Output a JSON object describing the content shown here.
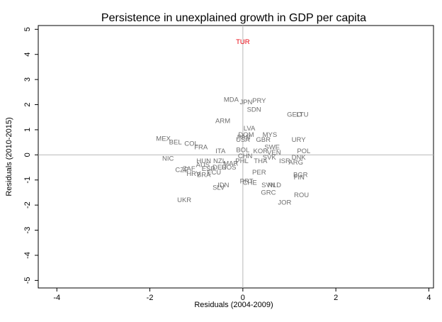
{
  "chart_data": {
    "type": "scatter",
    "title": "Persistence in unexplained growth in GDP per capita",
    "xlabel": "Residuals (2004-2009)",
    "ylabel": "Residuals (2010-2015)",
    "xlim": [
      -4.4,
      4.1
    ],
    "ylim": [
      -5.3,
      5.15
    ],
    "xticks": [
      -4,
      -2,
      0,
      2,
      4
    ],
    "yticks": [
      -5,
      -4,
      -3,
      -2,
      -1,
      0,
      1,
      2,
      3,
      4,
      5
    ],
    "reference_lines": {
      "x": 0,
      "y": 0
    },
    "highlight_color": "#e8000b",
    "label_color": "#6e6e6e",
    "points": [
      {
        "label": "TUR",
        "x": 0.0,
        "y": 4.5,
        "highlight": true
      },
      {
        "label": "MDA",
        "x": -0.25,
        "y": 2.2
      },
      {
        "label": "JPN",
        "x": 0.07,
        "y": 2.1
      },
      {
        "label": "PRY",
        "x": 0.35,
        "y": 2.15
      },
      {
        "label": "SDN",
        "x": 0.24,
        "y": 1.8
      },
      {
        "label": "GEO",
        "x": 1.11,
        "y": 1.6
      },
      {
        "label": "LTU",
        "x": 1.28,
        "y": 1.6
      },
      {
        "label": "ARM",
        "x": -0.43,
        "y": 1.35
      },
      {
        "label": "LVA",
        "x": 0.14,
        "y": 1.05
      },
      {
        "label": "DOM",
        "x": 0.07,
        "y": 0.8
      },
      {
        "label": "MYS",
        "x": 0.58,
        "y": 0.8
      },
      {
        "label": "PAN",
        "x": 0.02,
        "y": 0.7
      },
      {
        "label": "USA",
        "x": 0.0,
        "y": 0.6
      },
      {
        "label": "GBR",
        "x": 0.44,
        "y": 0.6
      },
      {
        "label": "URY",
        "x": 1.2,
        "y": 0.6
      },
      {
        "label": "MEX",
        "x": -1.71,
        "y": 0.65
      },
      {
        "label": "BEL",
        "x": -1.45,
        "y": 0.5
      },
      {
        "label": "COL",
        "x": -1.11,
        "y": 0.45
      },
      {
        "label": "FRA",
        "x": -0.9,
        "y": 0.3
      },
      {
        "label": "SWE",
        "x": 0.63,
        "y": 0.3
      },
      {
        "label": "ITA",
        "x": -0.48,
        "y": 0.15
      },
      {
        "label": "BOL",
        "x": 0.0,
        "y": 0.2
      },
      {
        "label": "KOR",
        "x": 0.38,
        "y": 0.15
      },
      {
        "label": "VEN",
        "x": 0.67,
        "y": 0.1
      },
      {
        "label": "POL",
        "x": 1.31,
        "y": 0.15
      },
      {
        "label": "SVK",
        "x": 0.57,
        "y": -0.1
      },
      {
        "label": "DNK",
        "x": 1.2,
        "y": -0.1
      },
      {
        "label": "CHN",
        "x": 0.05,
        "y": -0.05
      },
      {
        "label": "THA",
        "x": 0.38,
        "y": -0.25
      },
      {
        "label": "ISR",
        "x": 0.9,
        "y": -0.25
      },
      {
        "label": "ARG",
        "x": 1.14,
        "y": -0.3
      },
      {
        "label": "NIC",
        "x": -1.61,
        "y": -0.15
      },
      {
        "label": "HUN",
        "x": -0.84,
        "y": -0.25
      },
      {
        "label": "NZL",
        "x": -0.5,
        "y": -0.25
      },
      {
        "label": "PHL",
        "x": -0.02,
        "y": -0.25
      },
      {
        "label": "AUS",
        "x": -0.86,
        "y": -0.4
      },
      {
        "label": "MAR",
        "x": -0.26,
        "y": -0.35
      },
      {
        "label": "DEU",
        "x": -0.5,
        "y": -0.5
      },
      {
        "label": "ROS",
        "x": -0.3,
        "y": -0.5
      },
      {
        "label": "ESP",
        "x": -0.74,
        "y": -0.55
      },
      {
        "label": "CZE",
        "x": -1.31,
        "y": -0.6
      },
      {
        "label": "ZAF",
        "x": -1.16,
        "y": -0.55
      },
      {
        "label": "ECU",
        "x": -0.62,
        "y": -0.7
      },
      {
        "label": "PER",
        "x": 0.35,
        "y": -0.7
      },
      {
        "label": "HRV",
        "x": -1.06,
        "y": -0.75
      },
      {
        "label": "BRA",
        "x": -0.84,
        "y": -0.8
      },
      {
        "label": "BGR",
        "x": 1.24,
        "y": -0.8
      },
      {
        "label": "FIN",
        "x": 1.21,
        "y": -0.9
      },
      {
        "label": "PRT",
        "x": 0.08,
        "y": -1.05
      },
      {
        "label": "CHE",
        "x": 0.15,
        "y": -1.1
      },
      {
        "label": "SVN",
        "x": 0.55,
        "y": -1.2
      },
      {
        "label": "NLD",
        "x": 0.68,
        "y": -1.2
      },
      {
        "label": "IDN",
        "x": -0.42,
        "y": -1.2
      },
      {
        "label": "SLV",
        "x": -0.52,
        "y": -1.3
      },
      {
        "label": "GRC",
        "x": 0.55,
        "y": -1.5
      },
      {
        "label": "ROU",
        "x": 1.26,
        "y": -1.6
      },
      {
        "label": "JOR",
        "x": 0.9,
        "y": -1.9
      },
      {
        "label": "UKR",
        "x": -1.26,
        "y": -1.8
      }
    ]
  }
}
